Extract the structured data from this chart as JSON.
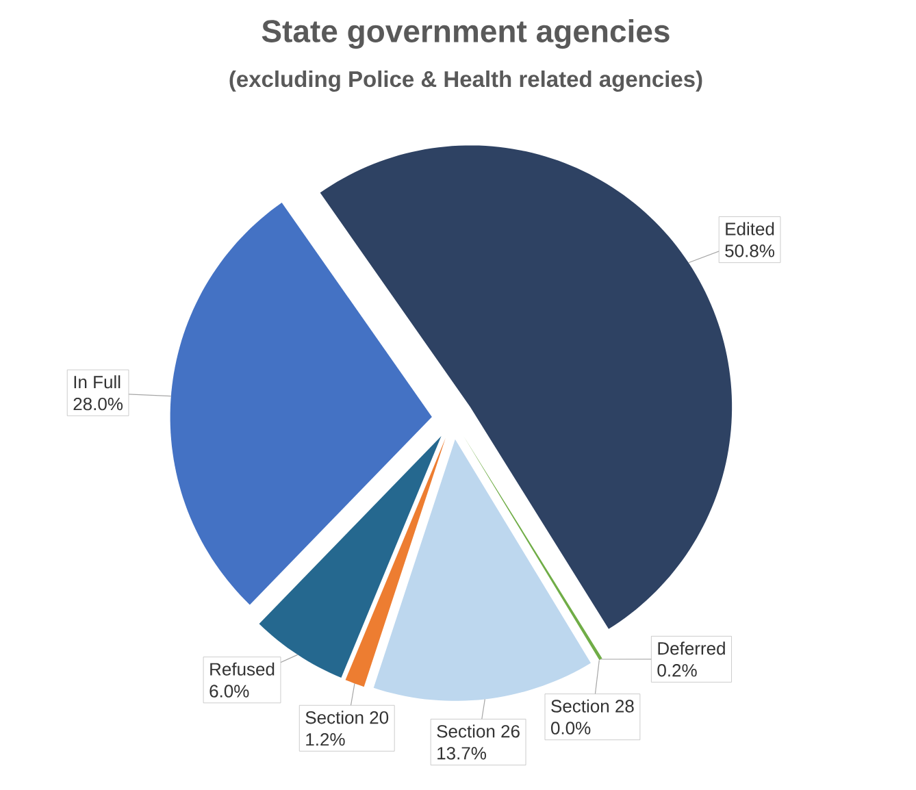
{
  "chart_data": {
    "type": "pie",
    "title": "State government agencies",
    "subtitle": "(excluding Police & Health related agencies)",
    "categories": [
      "Edited",
      "Deferred",
      "Section 28",
      "Section 26",
      "Section 20",
      "Refused",
      "In Full"
    ],
    "values": [
      50.8,
      0.2,
      0.0,
      13.7,
      1.2,
      6.0,
      28.0
    ],
    "value_labels": [
      "50.8%",
      "0.2%",
      "0.0%",
      "13.7%",
      "1.2%",
      "6.0%",
      "28.0%"
    ],
    "colors": [
      "#2e4263",
      "#70ad47",
      "#ffc000",
      "#bdd7ee",
      "#ed7d31",
      "#25688f",
      "#4472c4"
    ]
  }
}
